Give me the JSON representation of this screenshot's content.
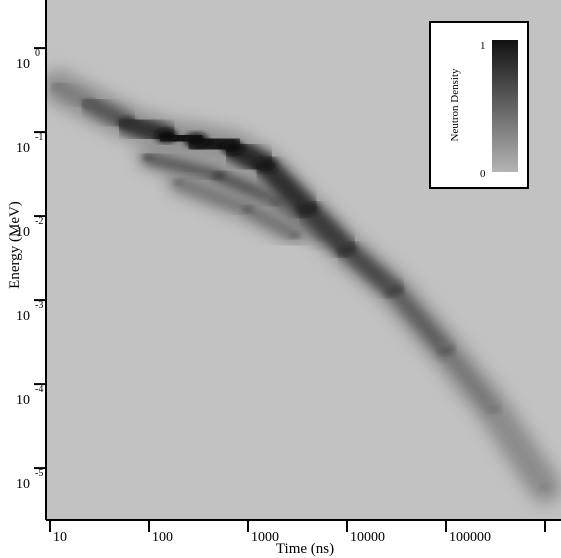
{
  "chart_data": {
    "type": "heatmap",
    "xlabel": "Time (ns)",
    "ylabel": "Energy (MeV)",
    "x_scale": "log",
    "y_scale": "log",
    "xlim": [
      10,
      1000000
    ],
    "ylim": [
      3e-06,
      3
    ],
    "x_ticks": [
      {
        "value": 10,
        "label": "10"
      },
      {
        "value": 100,
        "label": "100"
      },
      {
        "value": 1000,
        "label": "1000"
      },
      {
        "value": 10000,
        "label": "10000"
      },
      {
        "value": 100000,
        "label": "100000"
      },
      {
        "value": 1000000,
        "label": ""
      }
    ],
    "y_ticks": [
      {
        "value": 1,
        "base": "10",
        "exp": "0"
      },
      {
        "value": 0.1,
        "base": "10",
        "exp": "-1"
      },
      {
        "value": 0.01,
        "base": "10",
        "exp": "-2"
      },
      {
        "value": 0.001,
        "base": "10",
        "exp": "-3"
      },
      {
        "value": 0.0001,
        "base": "10",
        "exp": "-4"
      },
      {
        "value": 1e-05,
        "base": "10",
        "exp": "-5"
      }
    ],
    "colorbar": {
      "label": "Neutron Density",
      "max_label": "1",
      "min_label": "0",
      "low_color": "#b4b4b4",
      "high_color": "#111111",
      "placement": "top-right"
    },
    "background_color": "#c2c2c2",
    "ridge": [
      {
        "x": 12,
        "y": 0.35,
        "density": 0.25
      },
      {
        "x": 25,
        "y": 0.22,
        "density": 0.45
      },
      {
        "x": 60,
        "y": 0.13,
        "density": 0.7
      },
      {
        "x": 150,
        "y": 0.09,
        "density": 0.9
      },
      {
        "x": 300,
        "y": 0.08,
        "density": 1.0
      },
      {
        "x": 700,
        "y": 0.065,
        "density": 0.9
      },
      {
        "x": 1500,
        "y": 0.04,
        "density": 0.85
      },
      {
        "x": 4000,
        "y": 0.012,
        "density": 0.8
      },
      {
        "x": 10000,
        "y": 0.004,
        "density": 0.7
      },
      {
        "x": 30000,
        "y": 0.0013,
        "density": 0.6
      },
      {
        "x": 100000,
        "y": 0.00025,
        "density": 0.45
      },
      {
        "x": 300000,
        "y": 5e-05,
        "density": 0.3
      },
      {
        "x": 1000000,
        "y": 6e-06,
        "density": 0.2
      }
    ],
    "secondary_ridges": [
      [
        {
          "x": 100,
          "y": 0.05,
          "density": 0.5
        },
        {
          "x": 500,
          "y": 0.03,
          "density": 0.65
        },
        {
          "x": 2000,
          "y": 0.015,
          "density": 0.6
        },
        {
          "x": 6000,
          "y": 0.006,
          "density": 0.5
        }
      ],
      [
        {
          "x": 200,
          "y": 0.025,
          "density": 0.35
        },
        {
          "x": 1000,
          "y": 0.012,
          "density": 0.45
        },
        {
          "x": 3000,
          "y": 0.006,
          "density": 0.4
        }
      ]
    ]
  }
}
